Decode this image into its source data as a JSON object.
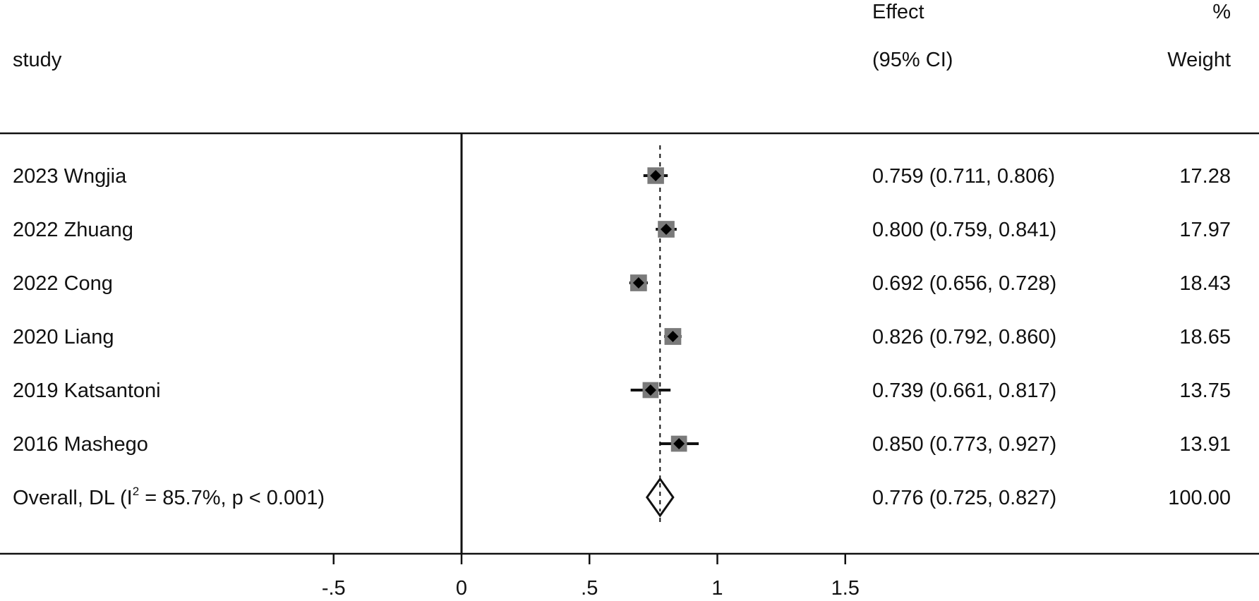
{
  "header": {
    "study_label": "study",
    "effect_line1": "Effect",
    "effect_line2": "(95% CI)",
    "weight_line1": "%",
    "weight_line2": "Weight"
  },
  "chart_data": {
    "type": "forest",
    "null_line": 0,
    "overall_line": 0.776,
    "xlim": [
      -0.5,
      1.5
    ],
    "ticks": [
      -0.5,
      0,
      0.5,
      1,
      1.5
    ],
    "tick_labels": [
      "-.5",
      "0",
      ".5",
      "1",
      "1.5"
    ],
    "studies": [
      {
        "label": "2023 Wngjia",
        "effect": 0.759,
        "lower": 0.711,
        "upper": 0.806,
        "ci_text": "0.759 (0.711, 0.806)",
        "weight": 17.28,
        "weight_text": "17.28"
      },
      {
        "label": "2022 Zhuang",
        "effect": 0.8,
        "lower": 0.759,
        "upper": 0.841,
        "ci_text": "0.800 (0.759, 0.841)",
        "weight": 17.97,
        "weight_text": "17.97"
      },
      {
        "label": "2022 Cong",
        "effect": 0.692,
        "lower": 0.656,
        "upper": 0.728,
        "ci_text": "0.692 (0.656, 0.728)",
        "weight": 18.43,
        "weight_text": "18.43"
      },
      {
        "label": "2020 Liang",
        "effect": 0.826,
        "lower": 0.792,
        "upper": 0.86,
        "ci_text": "0.826 (0.792, 0.860)",
        "weight": 18.65,
        "weight_text": "18.65"
      },
      {
        "label": "2019 Katsantoni",
        "effect": 0.739,
        "lower": 0.661,
        "upper": 0.817,
        "ci_text": "0.739 (0.661, 0.817)",
        "weight": 13.75,
        "weight_text": "13.75"
      },
      {
        "label": "2016 Mashego",
        "effect": 0.85,
        "lower": 0.773,
        "upper": 0.927,
        "ci_text": "0.850 (0.773, 0.927)",
        "weight": 13.91,
        "weight_text": "13.91"
      }
    ],
    "overall": {
      "label_prefix": "Overall, DL (I",
      "label_sup": "2",
      "label_suffix": " = 85.7%, p < 0.001)",
      "effect": 0.776,
      "lower": 0.725,
      "upper": 0.827,
      "ci_text": "0.776 (0.725, 0.827)",
      "weight": 100.0,
      "weight_text": "100.00"
    },
    "colors": {
      "box": "#7a7a7a",
      "point": "#000000",
      "line": "#111111"
    }
  }
}
